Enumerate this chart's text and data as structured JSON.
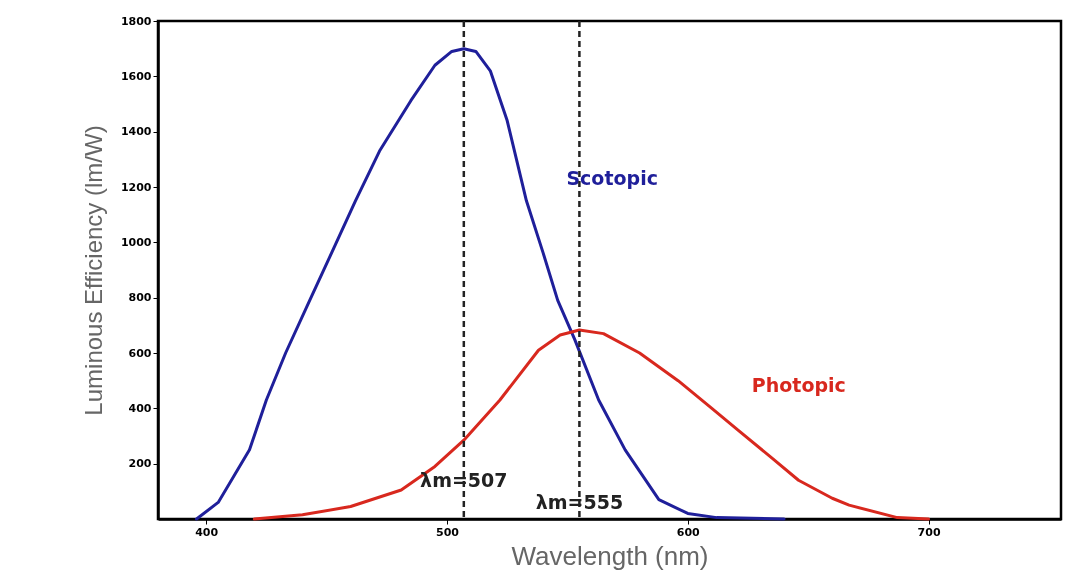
{
  "chart_data": {
    "type": "line",
    "xlabel": "Wavelength (nm)",
    "ylabel": "Luminous Efficiency (lm/W)",
    "xlim": [
      380,
      755
    ],
    "ylim": [
      0,
      1800
    ],
    "xticks": [
      400,
      500,
      600,
      700
    ],
    "yticks": [
      200,
      400,
      600,
      800,
      1000,
      1200,
      1400,
      1600,
      1800
    ],
    "grid": false,
    "legend": false,
    "marker": "none",
    "line_style": "solid",
    "series": [
      {
        "name": "Scotopic",
        "color": "#1f1f9a",
        "x": [
          396,
          405,
          418,
          425,
          433,
          443,
          452,
          462,
          472,
          485,
          495,
          502,
          507,
          512,
          518,
          525,
          533,
          540,
          546,
          553,
          563,
          574,
          588,
          600,
          612,
          640
        ],
        "values": [
          0,
          60,
          250,
          430,
          600,
          790,
          960,
          1150,
          1330,
          1512,
          1640,
          1690,
          1700,
          1690,
          1620,
          1440,
          1150,
          960,
          790,
          650,
          430,
          250,
          70,
          20,
          5,
          0
        ]
      },
      {
        "name": "Photopic",
        "color": "#d8281e",
        "x": [
          420,
          440,
          460,
          481,
          495,
          507,
          522,
          538,
          547,
          555,
          565,
          580,
          596,
          610,
          621,
          635,
          646,
          660,
          667,
          687,
          700
        ],
        "values": [
          0,
          15,
          45,
          105,
          190,
          285,
          430,
          610,
          665,
          683,
          670,
          600,
          500,
          400,
          320,
          220,
          140,
          75,
          50,
          5,
          0
        ]
      }
    ],
    "ref_lines": [
      {
        "axis": "x",
        "value": 507,
        "label": "λm=507",
        "line_style": "dashed",
        "color": "#222222"
      },
      {
        "axis": "x",
        "value": 555,
        "label": "λm=555",
        "line_style": "dashed",
        "color": "#222222"
      }
    ]
  }
}
